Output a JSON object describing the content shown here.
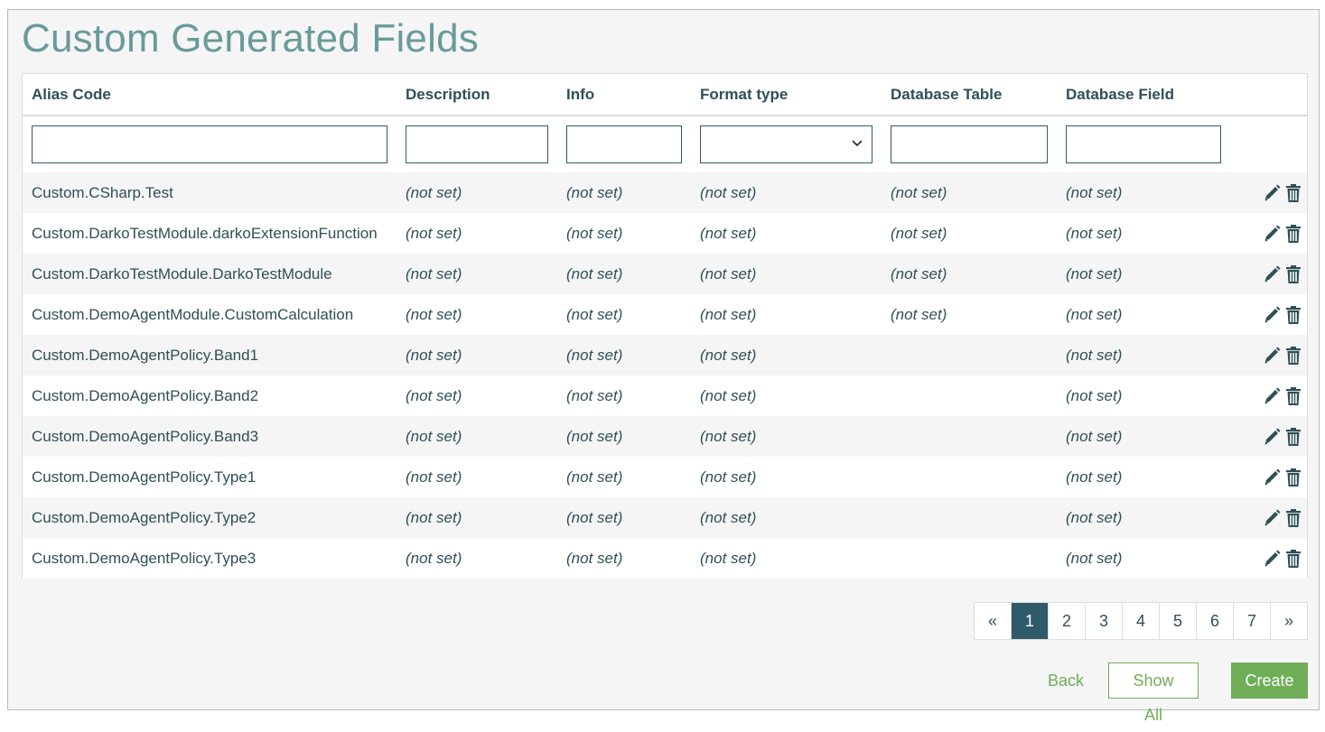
{
  "page": {
    "title": "Custom Generated Fields"
  },
  "table": {
    "columns": [
      "Alias Code",
      "Description",
      "Info",
      "Format type",
      "Database Table",
      "Database Field"
    ],
    "rows": [
      {
        "alias": "Custom.CSharp.Test",
        "description": "(not set)",
        "info": "(not set)",
        "format": "(not set)",
        "db_table": "(not set)",
        "db_field": "(not set)"
      },
      {
        "alias": "Custom.DarkoTestModule.darkoExtensionFunction",
        "description": "(not set)",
        "info": "(not set)",
        "format": "(not set)",
        "db_table": "(not set)",
        "db_field": "(not set)"
      },
      {
        "alias": "Custom.DarkoTestModule.DarkoTestModule",
        "description": "(not set)",
        "info": "(not set)",
        "format": "(not set)",
        "db_table": "(not set)",
        "db_field": "(not set)"
      },
      {
        "alias": "Custom.DemoAgentModule.CustomCalculation",
        "description": "(not set)",
        "info": "(not set)",
        "format": "(not set)",
        "db_table": "(not set)",
        "db_field": "(not set)"
      },
      {
        "alias": "Custom.DemoAgentPolicy.Band1",
        "description": "(not set)",
        "info": "(not set)",
        "format": "(not set)",
        "db_table": "",
        "db_field": "(not set)"
      },
      {
        "alias": "Custom.DemoAgentPolicy.Band2",
        "description": "(not set)",
        "info": "(not set)",
        "format": "(not set)",
        "db_table": "",
        "db_field": "(not set)"
      },
      {
        "alias": "Custom.DemoAgentPolicy.Band3",
        "description": "(not set)",
        "info": "(not set)",
        "format": "(not set)",
        "db_table": "",
        "db_field": "(not set)"
      },
      {
        "alias": "Custom.DemoAgentPolicy.Type1",
        "description": "(not set)",
        "info": "(not set)",
        "format": "(not set)",
        "db_table": "",
        "db_field": "(not set)"
      },
      {
        "alias": "Custom.DemoAgentPolicy.Type2",
        "description": "(not set)",
        "info": "(not set)",
        "format": "(not set)",
        "db_table": "",
        "db_field": "(not set)"
      },
      {
        "alias": "Custom.DemoAgentPolicy.Type3",
        "description": "(not set)",
        "info": "(not set)",
        "format": "(not set)",
        "db_table": "",
        "db_field": "(not set)"
      }
    ],
    "row_actions": [
      "pencil-icon",
      "trash-icon"
    ]
  },
  "pagination": {
    "prev": "«",
    "next": "»",
    "pages": [
      "1",
      "2",
      "3",
      "4",
      "5",
      "6",
      "7"
    ],
    "current": "1"
  },
  "buttons": {
    "back": "Back",
    "show_all": "Show All",
    "create": "Create"
  },
  "colors": {
    "title": "#6a9a9a",
    "accent": "#2f5a6a",
    "not_set": "#c0393b",
    "success": "#6fae57"
  }
}
